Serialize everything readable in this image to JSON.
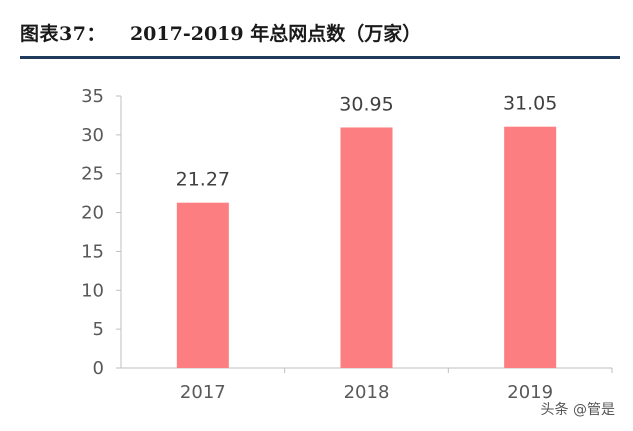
{
  "figure": {
    "label": "图表37：",
    "title": "2017-2019 年总网点数（万家）"
  },
  "watermark": "头条 @管是",
  "colors": {
    "bar": "#fc7e80",
    "axis": "#bfbfbf",
    "text": "#595959",
    "rule": "#1f3a5a"
  },
  "chart_data": {
    "type": "bar",
    "categories": [
      "2017",
      "2018",
      "2019"
    ],
    "values": [
      21.27,
      30.95,
      31.05
    ],
    "data_labels": [
      "21.27",
      "30.95",
      "31.05"
    ],
    "ylim": [
      0,
      35
    ],
    "yticks": [
      0,
      5,
      10,
      15,
      20,
      25,
      30,
      35
    ],
    "grid": false,
    "legend": "none"
  }
}
